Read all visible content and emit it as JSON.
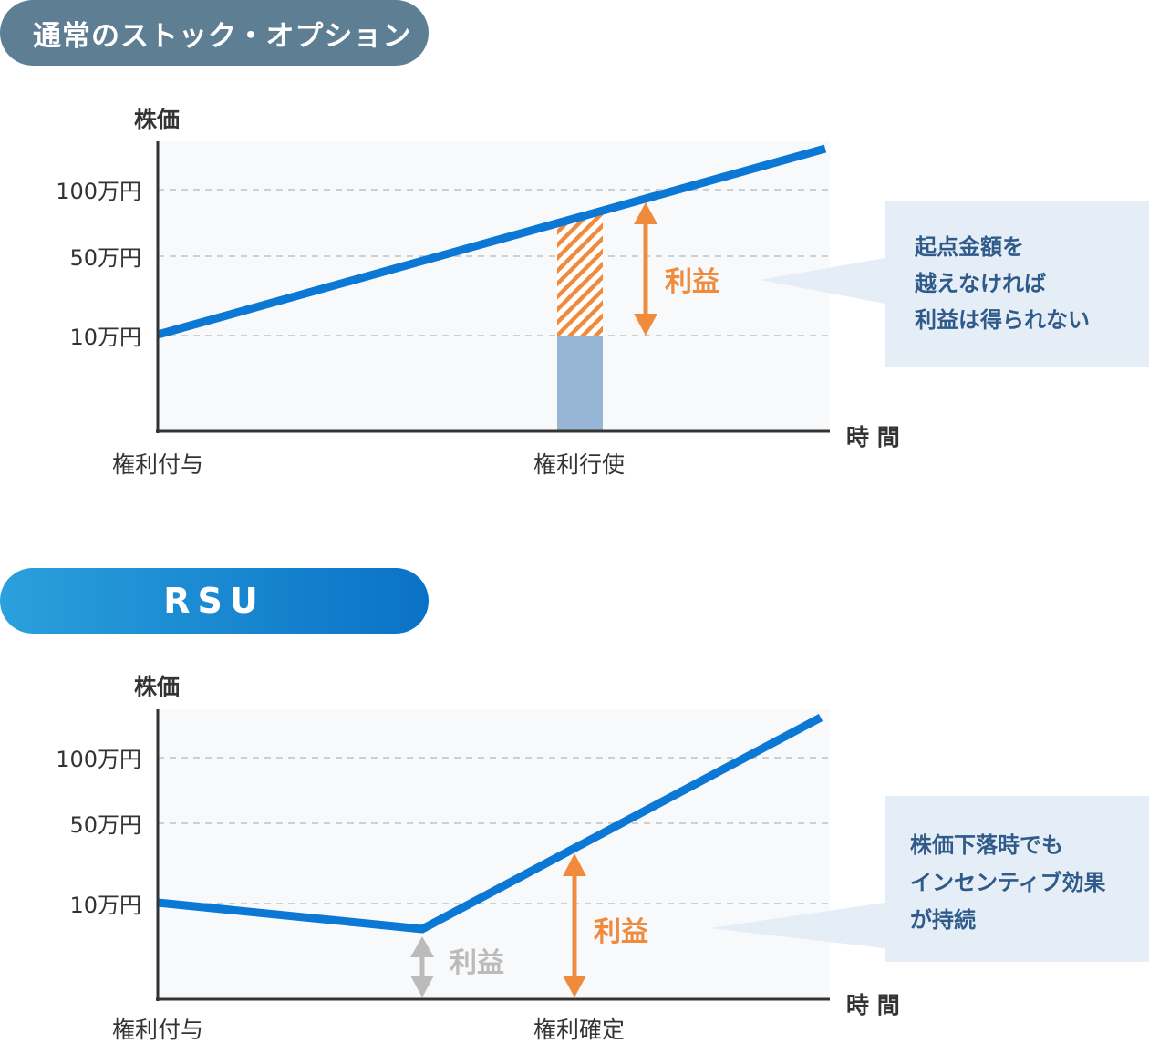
{
  "colors": {
    "line": "#0a78d4",
    "profit": "#f08a3c",
    "gray_arrow": "#bbbbbb",
    "bar": "#97b6d6",
    "callout_bg": "#e5eef7",
    "callout_text": "#2f5a8a",
    "grid": "#cfcfcf",
    "plot_bg": "#f8f9fb"
  },
  "section1": {
    "title": "通常のストック・オプション",
    "y_axis_label": "株価",
    "x_axis_label": "時 間",
    "ticks": [
      "100万円",
      "50万円",
      "10万円"
    ],
    "x_labels": [
      "権利付与",
      "権利行使"
    ],
    "profit_label": "利益",
    "callout": [
      "起点金額を",
      "越えなければ",
      "利益は得られない"
    ]
  },
  "section2": {
    "title": "RSU",
    "y_axis_label": "株価",
    "x_axis_label": "時 間",
    "ticks": [
      "100万円",
      "50万円",
      "10万円"
    ],
    "x_labels": [
      "権利付与",
      "権利確定"
    ],
    "profit_label": "利益",
    "profit_label_gray": "利益",
    "callout": [
      "株価下落時でも",
      "インセンティブ効果",
      "が持続"
    ]
  }
}
